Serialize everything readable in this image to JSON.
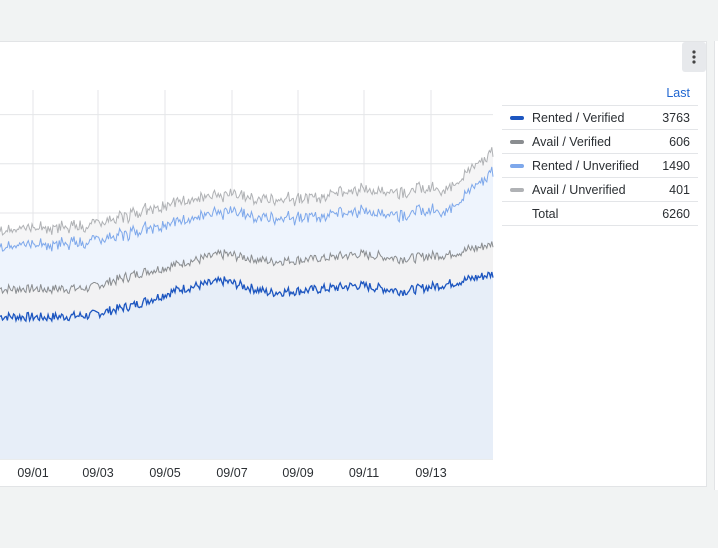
{
  "chart_data": {
    "type": "area",
    "stacked": true,
    "x_tick_labels": [
      "09/01",
      "09/03",
      "09/05",
      "09/07",
      "09/09",
      "09/11",
      "09/13"
    ],
    "legend": {
      "header": "Last",
      "total_label": "Total",
      "total_value": "6260"
    },
    "series": [
      {
        "name": "Rented / Verified",
        "last": "3763",
        "color": "#1d56c0",
        "fill": "#e7eef8",
        "anchors": [
          2900,
          2880,
          2920,
          3130,
          3450,
          3620,
          3380,
          3440,
          3530,
          3410,
          3560,
          3763
        ]
      },
      {
        "name": "Avail / Verified",
        "last": "606",
        "color": "#8a8d90",
        "fill": "#f2f2f3",
        "anchors": [
          560,
          575,
          560,
          615,
          525,
          545,
          640,
          620,
          630,
          665,
          600,
          606
        ]
      },
      {
        "name": "Rented / Unverified",
        "last": "1490",
        "color": "#7ea8eb",
        "fill": "#eef4fd",
        "anchors": [
          860,
          920,
          920,
          890,
          870,
          860,
          890,
          850,
          880,
          915,
          920,
          1490
        ]
      },
      {
        "name": "Avail / Unverified",
        "last": "401",
        "color": "#b0b2b5",
        "fill": "#f5f5f6",
        "anchors": [
          330,
          340,
          330,
          380,
          400,
          345,
          380,
          390,
          440,
          460,
          440,
          401
        ]
      }
    ],
    "grid": true
  },
  "colors": {
    "accent": "#1f66d1"
  },
  "icons": {
    "menu": "vertical-ellipsis-icon"
  }
}
